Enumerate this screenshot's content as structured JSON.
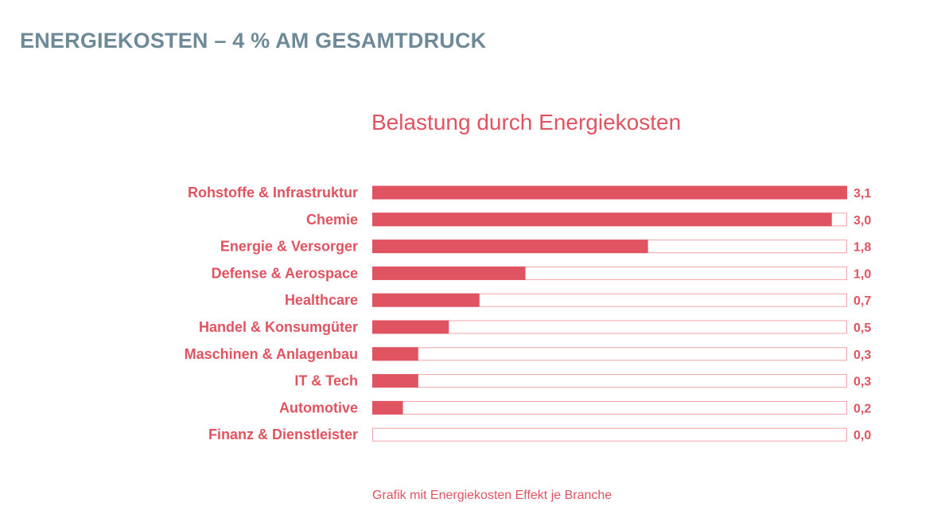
{
  "header": {
    "title": "ENERGIEKOSTEN – 4 % AM GESAMTDRUCK"
  },
  "colors": {
    "title": "#6e8a99",
    "accent": "#e05461",
    "track_border": "#f0a3aa",
    "text": "#e05461"
  },
  "chart_data": {
    "type": "bar",
    "orientation": "horizontal",
    "title": "Belastung durch Energiekosten",
    "categories": [
      "Rohstoffe & Infrastruktur",
      "Chemie",
      "Energie & Versorger",
      "Defense & Aerospace",
      "Healthcare",
      "Handel & Konsumgüter",
      "Maschinen & Anlagenbau",
      "IT & Tech",
      "Automotive",
      "Finanz & Dienstleister"
    ],
    "values": [
      3.1,
      3.0,
      1.8,
      1.0,
      0.7,
      0.5,
      0.3,
      0.3,
      0.2,
      0.0
    ],
    "value_labels": [
      "3,1",
      "3,0",
      "1,8",
      "1,0",
      "0,7",
      "0,5",
      "0,3",
      "0,3",
      "0,2",
      "0,0"
    ],
    "xlim": [
      0,
      3.1
    ],
    "xlabel": "",
    "ylabel": "",
    "grid": false,
    "legend": "none"
  },
  "caption": "Grafik mit Energiekosten Effekt je Branche"
}
